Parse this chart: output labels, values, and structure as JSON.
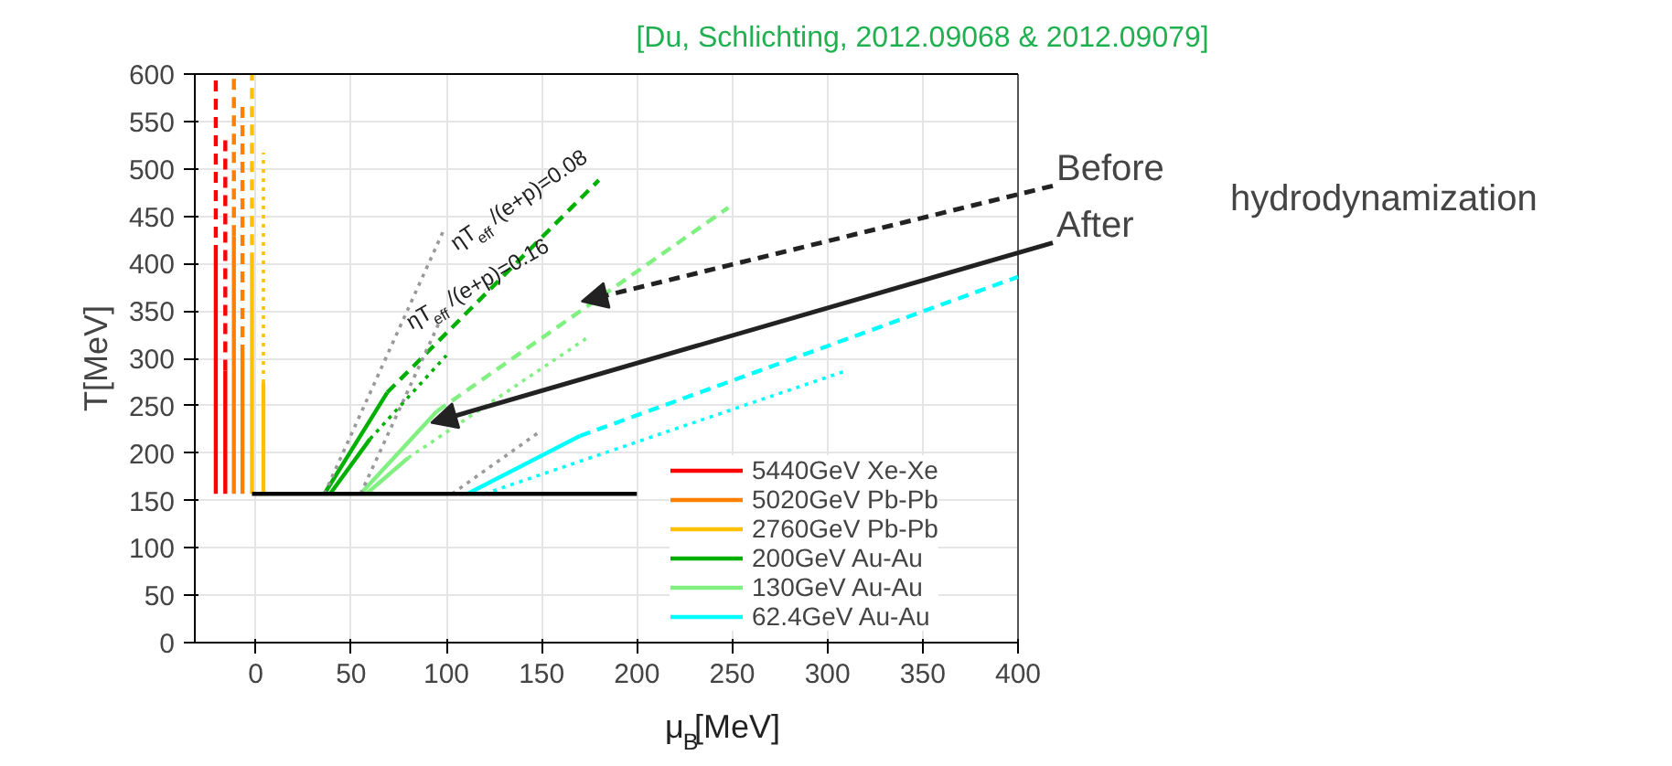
{
  "chart_data": {
    "type": "line",
    "title": "[Du, Schlichting, 2012.09068  & 2012.09079]",
    "xlabel": "μ$_{B}$[MeV]",
    "ylabel": "T[MeV]",
    "xlim": [
      -32,
      400
    ],
    "ylim": [
      0,
      600
    ],
    "xticks": [
      0,
      50,
      100,
      150,
      200,
      250,
      300,
      350,
      400
    ],
    "yticks": [
      0,
      50,
      100,
      150,
      200,
      250,
      300,
      350,
      400,
      450,
      500,
      550,
      600
    ],
    "grid": true,
    "legend": "bottom right",
    "line_style": "solid",
    "series": [
      {
        "name": "5440GeV Xe-Xe",
        "color": "#ff0000",
        "x": [
          -21,
          -21
        ],
        "values": [
          157,
          408
        ]
      },
      {
        "color": "#ff0000",
        "line_style": "dashed",
        "x": [
          -21,
          -21
        ],
        "values": [
          408,
          600
        ]
      },
      {
        "color": "#ff0000",
        "x": [
          -16,
          -16
        ],
        "values": [
          157,
          287
        ]
      },
      {
        "color": "#ff0000",
        "line_style": "dashed",
        "x": [
          -16,
          -16
        ],
        "values": [
          287,
          534
        ]
      },
      {
        "name": "5020GeV Pb-Pb",
        "color": "#ff8000",
        "x": [
          -11.5,
          -11.5
        ],
        "values": [
          157,
          429
        ]
      },
      {
        "color": "#ff8000",
        "line_style": "dashed",
        "x": [
          -11.5,
          -11.5
        ],
        "values": [
          429,
          600
        ]
      },
      {
        "color": "#ff8000",
        "x": [
          -7,
          -7
        ],
        "values": [
          157,
          303
        ]
      },
      {
        "color": "#ff8000",
        "line_style": "dashed",
        "x": [
          -7,
          -7
        ],
        "values": [
          303,
          567
        ]
      },
      {
        "name": "2760GeV Pb-Pb",
        "color": "#ffc000",
        "x": [
          -2,
          -2
        ],
        "values": [
          157,
          400
        ]
      },
      {
        "color": "#ffc000",
        "line_style": "dashed",
        "x": [
          -2,
          -2
        ],
        "values": [
          400,
          600
        ]
      },
      {
        "color": "#ffc000",
        "x": [
          4,
          4
        ],
        "values": [
          157,
          274
        ]
      },
      {
        "color": "#ffc000",
        "line_style": "dotted",
        "x": [
          4,
          4
        ],
        "values": [
          274,
          517
        ]
      },
      {
        "name": "200GeV Au-Au",
        "color": "#00b000",
        "x": [
          36,
          69
        ],
        "values": [
          157,
          264
        ]
      },
      {
        "color": "#00b000",
        "line_style": "dashed",
        "x": [
          69,
          180
        ],
        "values": [
          264,
          488
        ]
      },
      {
        "color": "#00b000",
        "x": [
          39,
          60
        ],
        "values": [
          157,
          215
        ]
      },
      {
        "color": "#00b000",
        "line_style": "dotted",
        "x": [
          60,
          100
        ],
        "values": [
          215,
          303
        ]
      },
      {
        "name": "130GeV Au-Au",
        "color": "#80f080",
        "x": [
          55,
          95
        ],
        "values": [
          157,
          244
        ]
      },
      {
        "color": "#80f080",
        "line_style": "dashed",
        "x": [
          95,
          248
        ],
        "values": [
          244,
          459
        ]
      },
      {
        "color": "#80f080",
        "x": [
          58,
          80
        ],
        "values": [
          157,
          195
        ]
      },
      {
        "color": "#80f080",
        "line_style": "dotted",
        "x": [
          80,
          175
        ],
        "values": [
          195,
          323
        ]
      },
      {
        "name": "62.4GeV Au-Au",
        "color": "#00ffff",
        "x": [
          111,
          170
        ],
        "values": [
          157,
          218
        ]
      },
      {
        "color": "#00ffff",
        "line_style": "dashed",
        "x": [
          170,
          400
        ],
        "values": [
          218,
          386
        ]
      },
      {
        "color": "#00ffff",
        "line_style": "dotted",
        "x": [
          120,
          310
        ],
        "values": [
          157,
          287
        ]
      },
      {
        "color": "#999999",
        "line_style": "dotted",
        "x": [
          36,
          99
        ],
        "values": [
          157,
          437
        ]
      },
      {
        "color": "#999999",
        "line_style": "dotted",
        "x": [
          55,
          97
        ],
        "values": [
          157,
          341
        ]
      },
      {
        "color": "#999999",
        "line_style": "dotted",
        "x": [
          103,
          150
        ],
        "values": [
          157,
          224
        ]
      },
      {
        "color": "#000000",
        "x": [
          -2,
          200
        ],
        "values": [
          157,
          157
        ]
      }
    ],
    "annotations": [
      "ηT$_{eff}$/(e+p)=0.08",
      "ηT$_{eff}$/(e+p)=0.16",
      {
        "text": "Before",
        "x": 171,
        "y": 360
      },
      {
        "text": "After",
        "x": 92,
        "y": 232
      },
      "hydrodynamization"
    ]
  }
}
